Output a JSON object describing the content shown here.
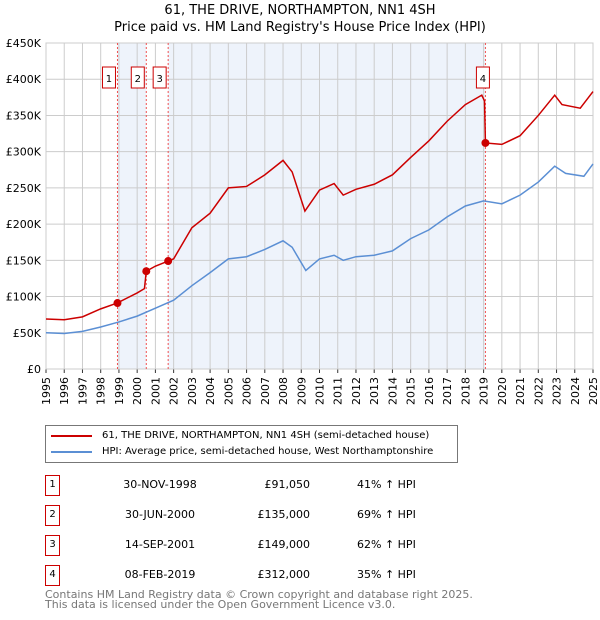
{
  "chart_data": {
    "type": "line",
    "title": "61, THE DRIVE, NORTHAMPTON, NN1 4SH",
    "subtitle": "Price paid vs. HM Land Registry's House Price Index (HPI)",
    "xlim": [
      1995,
      2025
    ],
    "ylim": [
      0,
      450000
    ],
    "y_ticks": [
      {
        "v": 0,
        "label": "£0"
      },
      {
        "v": 50000,
        "label": "£50K"
      },
      {
        "v": 100000,
        "label": "£100K"
      },
      {
        "v": 150000,
        "label": "£150K"
      },
      {
        "v": 200000,
        "label": "£200K"
      },
      {
        "v": 250000,
        "label": "£250K"
      },
      {
        "v": 300000,
        "label": "£300K"
      },
      {
        "v": 350000,
        "label": "£350K"
      },
      {
        "v": 400000,
        "label": "£400K"
      },
      {
        "v": 450000,
        "label": "£450K"
      }
    ],
    "x_ticks": [
      "1995",
      "1996",
      "1997",
      "1998",
      "1999",
      "2000",
      "2001",
      "2002",
      "2003",
      "2004",
      "2005",
      "2006",
      "2007",
      "2008",
      "2009",
      "2010",
      "2011",
      "2012",
      "2013",
      "2014",
      "2015",
      "2016",
      "2017",
      "2018",
      "2019",
      "2020",
      "2021",
      "2022",
      "2023",
      "2024",
      "2025"
    ],
    "grid": true,
    "series": [
      {
        "name": "61, THE DRIVE, NORTHAMPTON, NN1 4SH (semi-detached house)",
        "color": "#cc0000",
        "x": [
          1995,
          1996,
          1997,
          1998,
          1998.9,
          2000,
          2000.4,
          2000.5,
          2001,
          2001.7,
          2002,
          2003,
          2004,
          2005,
          2006,
          2007,
          2008,
          2008.5,
          2009.2,
          2010,
          2010.8,
          2011.3,
          2012,
          2013,
          2014,
          2015,
          2016,
          2017,
          2018,
          2018.9,
          2019.05,
          2019.1,
          2020,
          2021,
          2022,
          2022.9,
          2023.3,
          2024.3,
          2025
        ],
        "y": [
          69000,
          68000,
          72000,
          83000,
          91050,
          105000,
          111000,
          135000,
          142000,
          149000,
          152000,
          195000,
          215000,
          250000,
          252000,
          268000,
          288000,
          272000,
          218000,
          247000,
          256000,
          240000,
          248000,
          255000,
          268000,
          292000,
          315000,
          342000,
          365000,
          378000,
          370000,
          312000,
          310000,
          322000,
          350000,
          378000,
          365000,
          360000,
          383000
        ]
      },
      {
        "name": "HPI: Average price, semi-detached house, West Northamptonshire",
        "color": "#5b8fd4",
        "x": [
          1995,
          1996,
          1997,
          1998,
          1999,
          2000,
          2001,
          2002,
          2003,
          2004,
          2005,
          2006,
          2007,
          2008,
          2008.5,
          2009.25,
          2010,
          2010.8,
          2011.3,
          2012,
          2013,
          2014,
          2015,
          2016,
          2017,
          2018,
          2019,
          2020,
          2021,
          2022,
          2022.9,
          2023.5,
          2024.5,
          2025
        ],
        "y": [
          50000,
          49000,
          52000,
          58000,
          65000,
          73000,
          84000,
          95000,
          115000,
          133000,
          152000,
          155000,
          165000,
          177000,
          168000,
          136000,
          152000,
          157000,
          150000,
          155000,
          157000,
          163000,
          180000,
          192000,
          210000,
          225000,
          232000,
          228000,
          240000,
          258000,
          280000,
          270000,
          266000,
          283000
        ]
      }
    ],
    "sales": [
      {
        "n": "1",
        "x": 1998.92,
        "y": 91050,
        "date": "30-NOV-1998",
        "price": "£91,050",
        "pct": "41% ↑ HPI"
      },
      {
        "n": "2",
        "x": 2000.5,
        "y": 135000,
        "date": "30-JUN-2000",
        "price": "£135,000",
        "pct": "69% ↑ HPI"
      },
      {
        "n": "3",
        "x": 2001.7,
        "y": 149000,
        "date": "14-SEP-2001",
        "price": "£149,000",
        "pct": "62% ↑ HPI"
      },
      {
        "n": "4",
        "x": 2019.1,
        "y": 312000,
        "date": "08-FEB-2019",
        "price": "£312,000",
        "pct": "35% ↑ HPI"
      }
    ]
  },
  "footer": {
    "line1": "Contains HM Land Registry data © Crown copyright and database right 2025.",
    "line2": "This data is licensed under the Open Government Licence v3.0."
  }
}
